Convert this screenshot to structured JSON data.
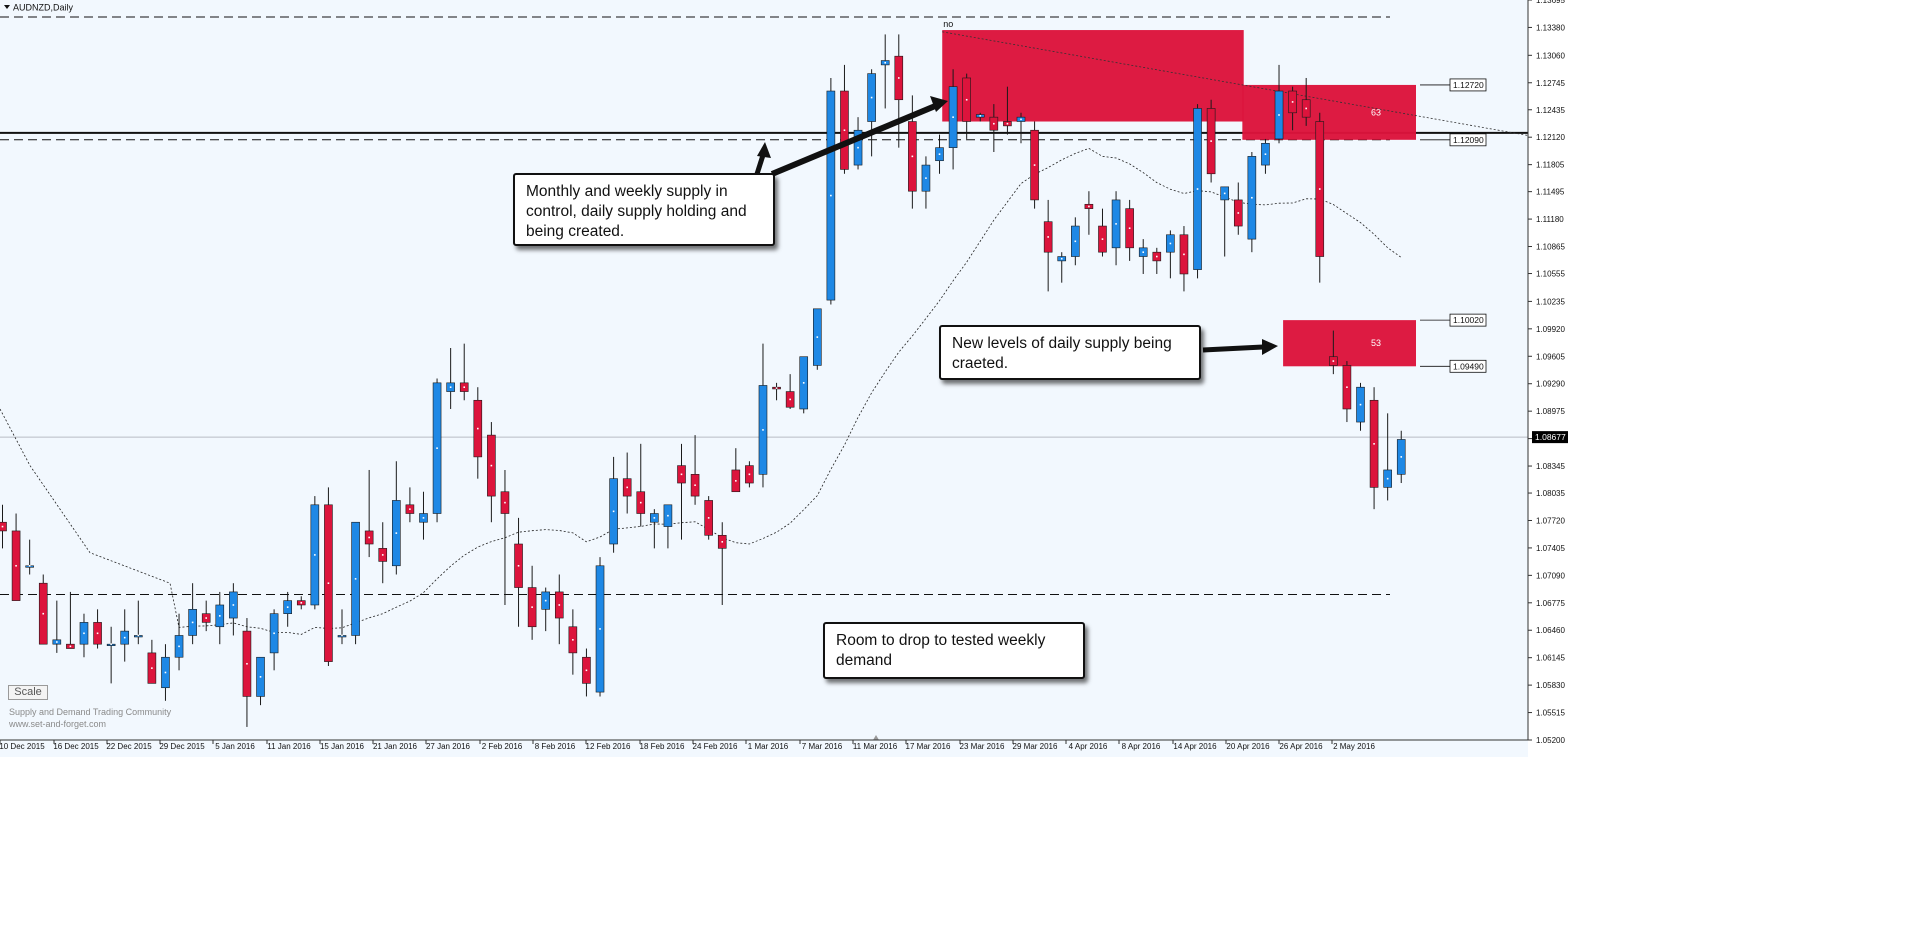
{
  "window": {
    "symbol_title": "AUDNZD,Daily"
  },
  "scale_button_label": "Scale",
  "watermark": [
    "Supply and Demand Trading Community",
    "www.set-and-forget.com"
  ],
  "colors": {
    "background": "#f2f8fe",
    "bull_candle": "#1e88e5",
    "bear_candle": "#dc143c",
    "supply_zone": "#dc143c",
    "axis_text": "#111111"
  },
  "callouts": [
    {
      "id": "callout-monthly-weekly",
      "text": "Monthly and weekly supply in control, daily supply holding and being created."
    },
    {
      "id": "callout-new-levels",
      "text": "New levels of daily supply being craeted."
    },
    {
      "id": "callout-room-drop",
      "text": "Room to drop to tested weekly demand"
    }
  ],
  "chart_data": {
    "type": "candlestick",
    "title": "AUDNZD,Daily",
    "xlabel": "",
    "ylabel": "",
    "ylim": [
      1.052,
      1.13695
    ],
    "yticks": [
      1.13695,
      1.1338,
      1.1306,
      1.12745,
      1.12435,
      1.1212,
      1.11805,
      1.11495,
      1.1118,
      1.10865,
      1.10555,
      1.10235,
      1.0992,
      1.09605,
      1.0929,
      1.08975,
      1.0866,
      1.08345,
      1.08035,
      1.0772,
      1.07405,
      1.0709,
      1.06775,
      1.0646,
      1.06145,
      1.0583,
      1.05515,
      1.052
    ],
    "xtick_labels": [
      "10 Dec 2015",
      "16 Dec 2015",
      "22 Dec 2015",
      "29 Dec 2015",
      "5 Jan 2016",
      "11 Jan 2016",
      "15 Jan 2016",
      "21 Jan 2016",
      "27 Jan 2016",
      "2 Feb 2016",
      "8 Feb 2016",
      "12 Feb 2016",
      "18 Feb 2016",
      "24 Feb 2016",
      "1 Mar 2016",
      "7 Mar 2016",
      "11 Mar 2016",
      "17 Mar 2016",
      "23 Mar 2016",
      "29 Mar 2016",
      "4 Apr 2016",
      "8 Apr 2016",
      "14 Apr 2016",
      "20 Apr 2016",
      "26 Apr 2016",
      "2 May 2016"
    ],
    "current_price": 1.08677,
    "price_labels": [
      1.1272,
      1.1209,
      1.1002,
      1.0949
    ],
    "horizontal_lines": [
      {
        "price": 1.135,
        "style": "dashed"
      },
      {
        "price": 1.1217,
        "style": "solid"
      },
      {
        "price": 1.1209,
        "style": "dashed"
      },
      {
        "price": 1.0687,
        "style": "dashed"
      }
    ],
    "zones": [
      {
        "from_index": 0,
        "to_index": 0,
        "top": 1.1335,
        "bottom": 1.123,
        "label": "no",
        "extends_to_axis": false
      },
      {
        "from_index": 0,
        "to_index": 0,
        "top": 1.1272,
        "bottom": 1.1209,
        "label": "63",
        "extends_to_axis": true
      },
      {
        "from_index": 0,
        "to_index": 0,
        "top": 1.1002,
        "bottom": 1.0949,
        "label": "53",
        "extends_to_axis": true
      }
    ],
    "candles": [
      [
        1.077,
        1.079,
        1.074,
        1.076
      ],
      [
        1.076,
        1.078,
        1.068,
        1.068
      ],
      [
        1.072,
        1.075,
        1.071,
        1.072
      ],
      [
        1.07,
        1.071,
        1.063,
        1.063
      ],
      [
        1.063,
        1.068,
        1.062,
        1.0635
      ],
      [
        1.063,
        1.069,
        1.0625,
        1.0625
      ],
      [
        1.063,
        1.0665,
        1.0615,
        1.0655
      ],
      [
        1.0655,
        1.067,
        1.0625,
        1.063
      ],
      [
        1.063,
        1.065,
        1.0585,
        1.063
      ],
      [
        1.063,
        1.067,
        1.061,
        1.0645
      ],
      [
        1.064,
        1.068,
        1.063,
        1.064
      ],
      [
        1.062,
        1.0635,
        1.0585,
        1.0585
      ],
      [
        1.058,
        1.063,
        1.0565,
        1.0615
      ],
      [
        1.0615,
        1.0665,
        1.06,
        1.064
      ],
      [
        1.064,
        1.07,
        1.063,
        1.067
      ],
      [
        1.0665,
        1.068,
        1.0645,
        1.0655
      ],
      [
        1.065,
        1.069,
        1.063,
        1.0675
      ],
      [
        1.066,
        1.07,
        1.064,
        1.069
      ],
      [
        1.0645,
        1.066,
        1.0535,
        1.057
      ],
      [
        1.057,
        1.0615,
        1.056,
        1.0615
      ],
      [
        1.062,
        1.067,
        1.06,
        1.0665
      ],
      [
        1.0665,
        1.069,
        1.065,
        1.068
      ],
      [
        1.068,
        1.0685,
        1.067,
        1.0675
      ],
      [
        1.0675,
        1.08,
        1.067,
        1.079
      ],
      [
        1.079,
        1.081,
        1.0605,
        1.061
      ],
      [
        1.064,
        1.067,
        1.063,
        1.064
      ],
      [
        1.064,
        1.077,
        1.063,
        1.077
      ],
      [
        1.076,
        1.083,
        1.073,
        1.0745
      ],
      [
        1.074,
        1.077,
        1.07,
        1.0725
      ],
      [
        1.072,
        1.084,
        1.071,
        1.0795
      ],
      [
        1.079,
        1.081,
        1.077,
        1.078
      ],
      [
        1.077,
        1.0805,
        1.075,
        1.078
      ],
      [
        1.078,
        1.0935,
        1.077,
        1.093
      ],
      [
        1.092,
        1.097,
        1.09,
        1.093
      ],
      [
        1.093,
        1.0975,
        1.091,
        1.092
      ],
      [
        1.091,
        1.0925,
        1.082,
        1.0845
      ],
      [
        1.087,
        1.0885,
        1.077,
        1.08
      ],
      [
        1.0805,
        1.083,
        1.0675,
        1.078
      ],
      [
        1.0745,
        1.0775,
        1.065,
        1.0695
      ],
      [
        1.0695,
        1.072,
        1.0635,
        1.065
      ],
      [
        1.067,
        1.0695,
        1.0645,
        1.069
      ],
      [
        1.069,
        1.071,
        1.063,
        1.066
      ],
      [
        1.065,
        1.067,
        1.0595,
        1.062
      ],
      [
        1.0615,
        1.0625,
        1.057,
        1.0585
      ],
      [
        1.0575,
        1.073,
        1.057,
        1.072
      ],
      [
        1.0745,
        1.0845,
        1.0735,
        1.082
      ],
      [
        1.082,
        1.085,
        1.078,
        1.08
      ],
      [
        1.0805,
        1.086,
        1.0765,
        1.078
      ],
      [
        1.077,
        1.0785,
        1.074,
        1.078
      ],
      [
        1.0765,
        1.079,
        1.074,
        1.079
      ],
      [
        1.0835,
        1.086,
        1.075,
        1.0815
      ],
      [
        1.0825,
        1.087,
        1.079,
        1.08
      ],
      [
        1.0795,
        1.08,
        1.075,
        1.0755
      ],
      [
        1.0755,
        1.077,
        1.0675,
        1.074
      ],
      [
        1.083,
        1.0855,
        1.0805,
        1.0805
      ],
      [
        1.0835,
        1.084,
        1.081,
        1.0815
      ],
      [
        1.0825,
        1.0975,
        1.081,
        1.0927
      ],
      [
        1.0925,
        1.093,
        1.091,
        1.0923
      ],
      [
        1.092,
        1.094,
        1.09,
        1.0902
      ],
      [
        1.09,
        1.096,
        1.0895,
        1.096
      ],
      [
        1.095,
        1.1015,
        1.0945,
        1.1015
      ],
      [
        1.1025,
        1.128,
        1.102,
        1.1265
      ],
      [
        1.1265,
        1.1295,
        1.117,
        1.1175
      ],
      [
        1.118,
        1.1235,
        1.1175,
        1.122
      ],
      [
        1.123,
        1.129,
        1.119,
        1.1285
      ],
      [
        1.1295,
        1.133,
        1.1245,
        1.13
      ],
      [
        1.1305,
        1.133,
        1.12,
        1.1255
      ],
      [
        1.123,
        1.126,
        1.113,
        1.115
      ],
      [
        1.115,
        1.119,
        1.113,
        1.118
      ],
      [
        1.1185,
        1.1215,
        1.117,
        1.12
      ],
      [
        1.12,
        1.129,
        1.1175,
        1.127
      ],
      [
        1.128,
        1.1285,
        1.121,
        1.123
      ],
      [
        1.1235,
        1.124,
        1.123,
        1.1238
      ],
      [
        1.1235,
        1.125,
        1.1195,
        1.122
      ],
      [
        1.123,
        1.127,
        1.1215,
        1.1225
      ],
      [
        1.123,
        1.124,
        1.1205,
        1.1235
      ],
      [
        1.122,
        1.123,
        1.113,
        1.114
      ],
      [
        1.1115,
        1.114,
        1.1035,
        1.108
      ],
      [
        1.107,
        1.108,
        1.1045,
        1.1075
      ],
      [
        1.1075,
        1.112,
        1.1065,
        1.111
      ],
      [
        1.1135,
        1.115,
        1.11,
        1.113
      ],
      [
        1.111,
        1.113,
        1.1075,
        1.108
      ],
      [
        1.1085,
        1.115,
        1.1065,
        1.114
      ],
      [
        1.113,
        1.114,
        1.107,
        1.1085
      ],
      [
        1.1075,
        1.1095,
        1.1055,
        1.1085
      ],
      [
        1.108,
        1.1085,
        1.1055,
        1.107
      ],
      [
        1.108,
        1.1105,
        1.105,
        1.11
      ],
      [
        1.11,
        1.111,
        1.1035,
        1.1055
      ],
      [
        1.106,
        1.125,
        1.105,
        1.1245
      ],
      [
        1.1245,
        1.1255,
        1.116,
        1.117
      ],
      [
        1.114,
        1.1155,
        1.1075,
        1.1155
      ],
      [
        1.114,
        1.116,
        1.11,
        1.111
      ],
      [
        1.1095,
        1.1195,
        1.108,
        1.119
      ],
      [
        1.118,
        1.121,
        1.117,
        1.1205
      ],
      [
        1.121,
        1.1295,
        1.1205,
        1.1265
      ],
      [
        1.1265,
        1.127,
        1.122,
        1.124
      ],
      [
        1.1255,
        1.128,
        1.1225,
        1.1235
      ],
      [
        1.123,
        1.124,
        1.1045,
        1.1075
      ],
      [
        1.096,
        1.099,
        1.094,
        1.095
      ],
      [
        1.095,
        1.0955,
        1.0885,
        1.09
      ],
      [
        1.0885,
        1.093,
        1.0875,
        1.0925
      ],
      [
        1.091,
        1.0925,
        1.0785,
        1.081
      ],
      [
        1.081,
        1.0895,
        1.0795,
        1.083
      ],
      [
        1.0825,
        1.0875,
        1.0815,
        1.0865
      ]
    ]
  }
}
